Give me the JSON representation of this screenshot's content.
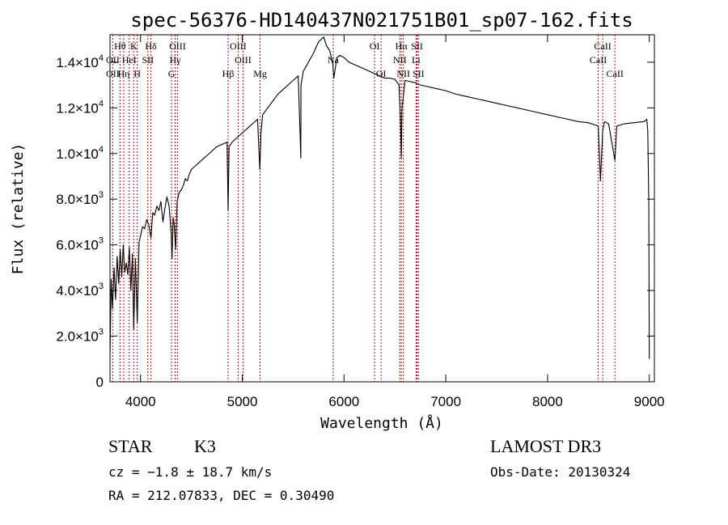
{
  "chart_data": {
    "type": "line",
    "title": "spec-56376-HD140437N021751B01_sp07-162.fits",
    "xlabel": "Wavelength (Å)",
    "ylabel": "Flux (relative)",
    "xlim": [
      3700,
      9050
    ],
    "ylim": [
      0,
      15200
    ],
    "x_ticks": [
      {
        "value": 4000,
        "label": "4000"
      },
      {
        "value": 5000,
        "label": "5000"
      },
      {
        "value": 6000,
        "label": "6000"
      },
      {
        "value": 7000,
        "label": "7000"
      },
      {
        "value": 8000,
        "label": "8000"
      },
      {
        "value": 9000,
        "label": "9000"
      }
    ],
    "y_ticks": [
      {
        "value": 0,
        "mant": "0",
        "exp": ""
      },
      {
        "value": 2000,
        "mant": "2.0×10",
        "exp": "3"
      },
      {
        "value": 4000,
        "mant": "4.0×10",
        "exp": "3"
      },
      {
        "value": 6000,
        "mant": "6.0×10",
        "exp": "3"
      },
      {
        "value": 8000,
        "mant": "8.0×10",
        "exp": "3"
      },
      {
        "value": 10000,
        "mant": "1.0×10",
        "exp": "4"
      },
      {
        "value": 12000,
        "mant": "1.2×10",
        "exp": "4"
      },
      {
        "value": 14000,
        "mant": "1.4×10",
        "exp": "4"
      }
    ],
    "series": [
      {
        "name": "flux",
        "x": [
          3700,
          3712,
          3725,
          3740,
          3755,
          3770,
          3785,
          3800,
          3815,
          3830,
          3845,
          3860,
          3875,
          3890,
          3905,
          3920,
          3933,
          3950,
          3968,
          3985,
          4000,
          4020,
          4040,
          4060,
          4080,
          4102,
          4120,
          4140,
          4160,
          4180,
          4200,
          4220,
          4240,
          4260,
          4280,
          4300,
          4310,
          4320,
          4330,
          4345,
          4360,
          4380,
          4400,
          4420,
          4440,
          4460,
          4480,
          4500,
          4550,
          4600,
          4650,
          4700,
          4750,
          4800,
          4850,
          4861,
          4870,
          4900,
          4950,
          5000,
          5050,
          5100,
          5150,
          5172,
          5183,
          5200,
          5250,
          5300,
          5350,
          5400,
          5450,
          5500,
          5550,
          5575,
          5577,
          5600,
          5650,
          5700,
          5750,
          5800,
          5830,
          5860,
          5890,
          5900,
          5930,
          5960,
          6000,
          6050,
          6100,
          6150,
          6200,
          6250,
          6300,
          6350,
          6400,
          6450,
          6500,
          6540,
          6555,
          6563,
          6570,
          6600,
          6650,
          6700,
          6750,
          6800,
          6900,
          7000,
          7100,
          7200,
          7300,
          7400,
          7500,
          7600,
          7700,
          7800,
          7900,
          8000,
          8100,
          8200,
          8300,
          8400,
          8498,
          8520,
          8542,
          8560,
          8600,
          8662,
          8680,
          8750,
          8850,
          8950,
          8975,
          8985,
          8995,
          9000
        ],
        "y": [
          1200,
          4500,
          3200,
          5000,
          3600,
          5500,
          4300,
          5800,
          4600,
          6000,
          4800,
          5200,
          4700,
          5900,
          4000,
          5600,
          2300,
          5400,
          2600,
          6100,
          6400,
          6800,
          6700,
          7100,
          6900,
          6300,
          7400,
          7300,
          7700,
          7500,
          7900,
          7000,
          7600,
          8100,
          7700,
          6600,
          5400,
          7200,
          6900,
          5800,
          7900,
          8300,
          8400,
          8600,
          8900,
          8800,
          9100,
          9300,
          9500,
          9700,
          9900,
          10100,
          10300,
          10400,
          10500,
          7500,
          10300,
          10500,
          10700,
          10900,
          11100,
          11300,
          11500,
          9300,
          10900,
          11700,
          12000,
          12300,
          12600,
          12800,
          13000,
          13200,
          13400,
          9800,
          13000,
          13600,
          14000,
          14400,
          14900,
          15100,
          14700,
          14500,
          13900,
          13300,
          14200,
          14300,
          14200,
          14000,
          13900,
          13800,
          13700,
          13600,
          13500,
          13400,
          13300,
          13300,
          13250,
          13000,
          11500,
          9800,
          12000,
          13200,
          13150,
          13100,
          13000,
          12950,
          12850,
          12750,
          12600,
          12500,
          12400,
          12300,
          12200,
          12100,
          12000,
          11900,
          11800,
          11700,
          11600,
          11500,
          11400,
          11350,
          11200,
          8800,
          11000,
          11400,
          11300,
          9700,
          11200,
          11300,
          11350,
          11400,
          11500,
          11000,
          7800,
          1000
        ]
      }
    ],
    "spectral_lines": [
      {
        "name": "Hθ",
        "x": 3798,
        "row": 1
      },
      {
        "name": "OII",
        "x": 3727,
        "row": 2
      },
      {
        "name": "Hη",
        "x": 3835,
        "row": 3
      },
      {
        "name": "OII",
        "x": 3727,
        "row": 3
      },
      {
        "name": "K",
        "x": 3933,
        "row": 1
      },
      {
        "name": "HeI",
        "x": 3889,
        "row": 2
      },
      {
        "name": "H",
        "x": 3968,
        "row": 3
      },
      {
        "name": "Hδ",
        "x": 4102,
        "row": 1
      },
      {
        "name": "SII",
        "x": 4072,
        "row": 2
      },
      {
        "name": "OIII",
        "x": 4363,
        "row": 1
      },
      {
        "name": "Hγ",
        "x": 4340,
        "row": 2
      },
      {
        "name": "G",
        "x": 4305,
        "row": 3
      },
      {
        "name": "OIII",
        "x": 4959,
        "row": 1
      },
      {
        "name": "OIII",
        "x": 5007,
        "row": 2
      },
      {
        "name": "Hβ",
        "x": 4861,
        "row": 3
      },
      {
        "name": "Mg",
        "x": 5175,
        "row": 3
      },
      {
        "name": "Na",
        "x": 5893,
        "row": 2
      },
      {
        "name": "OI",
        "x": 6300,
        "row": 1
      },
      {
        "name": "OI",
        "x": 6364,
        "row": 3
      },
      {
        "name": "Hα",
        "x": 6563,
        "row": 1
      },
      {
        "name": "NII",
        "x": 6548,
        "row": 2
      },
      {
        "name": "NII",
        "x": 6583,
        "row": 3
      },
      {
        "name": "SII",
        "x": 6717,
        "row": 1
      },
      {
        "name": "Li",
        "x": 6708,
        "row": 2
      },
      {
        "name": "SII",
        "x": 6731,
        "row": 3
      },
      {
        "name": "CaII",
        "x": 8542,
        "row": 1
      },
      {
        "name": "CaII",
        "x": 8498,
        "row": 2
      },
      {
        "name": "CaII",
        "x": 8662,
        "row": 3
      }
    ]
  },
  "info": {
    "object_class": "STAR",
    "subclass": "K3",
    "cz": "cz = −1.8 ± 18.7 km/s",
    "coords": "RA = 212.07833, DEC =    0.30490",
    "survey": "LAMOST DR3",
    "obs_date": "Obs-Date: 20130324"
  },
  "colors": {
    "line_marker": "#cc0000",
    "spectrum": "#000000"
  }
}
